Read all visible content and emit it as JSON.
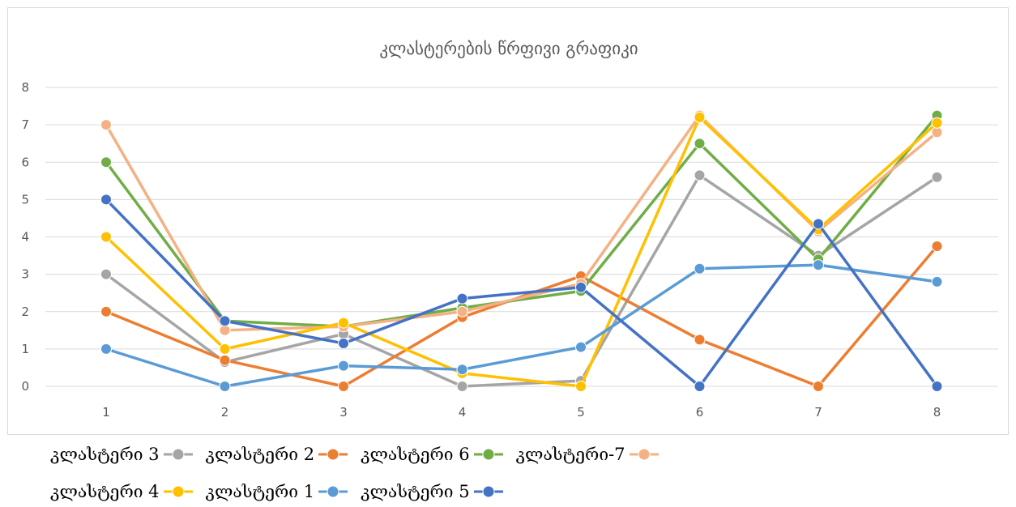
{
  "chart_data": {
    "type": "line",
    "title": "კლასტერების წრფივი გრაფიკი",
    "categories": [
      "1",
      "2",
      "3",
      "4",
      "5",
      "6",
      "7",
      "8"
    ],
    "ylim": [
      0,
      8
    ],
    "yticks": [
      "0",
      "1",
      "2",
      "3",
      "4",
      "5",
      "6",
      "7",
      "8"
    ],
    "grid": true,
    "legend_position": "bottom",
    "series": [
      {
        "name": "კლასტერი 3",
        "color": "#A5A5A5",
        "values": [
          3.0,
          0.65,
          1.4,
          0.0,
          0.15,
          5.65,
          3.5,
          5.6
        ]
      },
      {
        "name": "კლასტერი 2",
        "color": "#ED7D31",
        "values": [
          2.0,
          0.7,
          0.0,
          1.85,
          2.95,
          1.25,
          0.0,
          3.75
        ]
      },
      {
        "name": "კლასტერი 6",
        "color": "#70AD47",
        "values": [
          6.0,
          1.75,
          1.6,
          2.1,
          2.55,
          6.5,
          3.4,
          7.25
        ]
      },
      {
        "name": "კლასტერი-7",
        "color": "#F4B183",
        "values": [
          7.0,
          1.5,
          1.6,
          2.0,
          2.75,
          7.25,
          4.15,
          6.8
        ]
      },
      {
        "name": "კლასტერი 4",
        "color": "#FFC000",
        "values": [
          4.0,
          1.0,
          1.7,
          0.35,
          0.0,
          7.2,
          4.2,
          7.05
        ]
      },
      {
        "name": "კლასტერი 1",
        "color": "#5B9BD5",
        "values": [
          1.0,
          0.0,
          0.55,
          0.45,
          1.05,
          3.15,
          3.25,
          2.8
        ]
      },
      {
        "name": "კლასტერი 5",
        "color": "#4472C4",
        "values": [
          5.0,
          1.75,
          1.15,
          2.35,
          2.65,
          0.0,
          4.35,
          0.0
        ]
      }
    ]
  }
}
